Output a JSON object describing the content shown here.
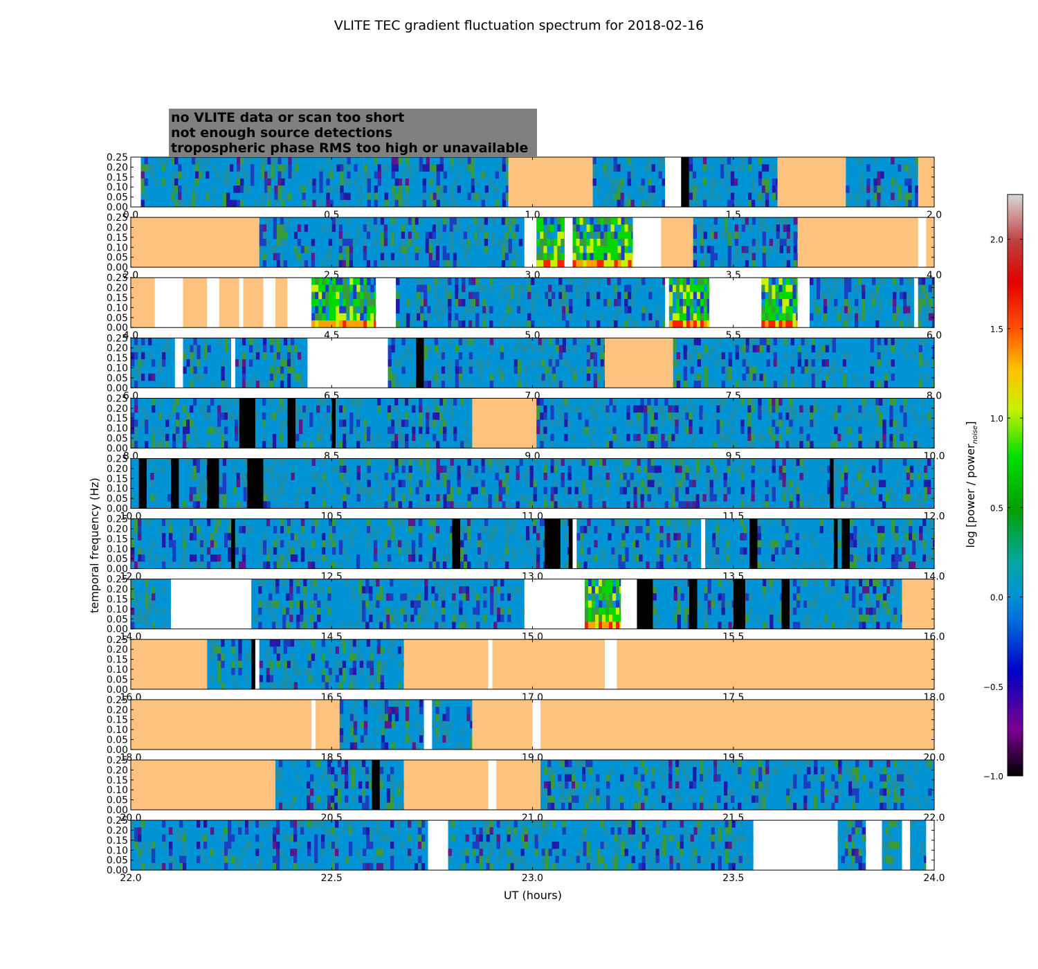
{
  "chart_data": {
    "type": "heatmap",
    "title": "VLITE TEC gradient fluctuation spectrum for 2018-02-16",
    "xlabel": "UT (hours)",
    "ylabel": "temporal frequency (Hz)",
    "colorbar_label": "log [power / power",
    "colorbar_label_sub": "noise",
    "colorbar_label_close": "]",
    "colorbar_range": [
      -1.0,
      2.25
    ],
    "colorbar_ticks": [
      "−1.0",
      "−0.5",
      "0.0",
      "0.5",
      "1.0",
      "1.5",
      "2.0"
    ],
    "colorbar_tick_values": [
      -1.0,
      -0.5,
      0.0,
      0.5,
      1.0,
      1.5,
      2.0
    ],
    "ylim": [
      0,
      0.25
    ],
    "ytick_labels": [
      "0.00",
      "0.05",
      "0.10",
      "0.15",
      "0.20",
      "0.25"
    ],
    "grid": false,
    "legend": {
      "placement": "top-left",
      "entries": [
        {
          "label": "no VLITE data or scan too short",
          "text_color": "#ffffff",
          "fill": "#ffffff"
        },
        {
          "label": "not enough source detections",
          "text_color": "#000000",
          "fill": "#000000"
        },
        {
          "label": "tropospheric phase RMS too high or unavailable",
          "text_color": "#fdc37e",
          "fill": "#fdc37e"
        }
      ]
    },
    "colors": {
      "nodata": "#ffffff",
      "nodetect": "#000000",
      "tropo": "#fdc37e",
      "legend_bg": "#808080",
      "baseline": "#0093d6"
    },
    "panels": [
      {
        "xlim": [
          0.0,
          2.0
        ],
        "xticks": [
          "0.0",
          "0.5",
          "1.0",
          "1.5",
          "2.0"
        ],
        "segments": [
          [
            0.0,
            0.025,
            "nodata"
          ],
          [
            0.025,
            0.1,
            "data"
          ],
          [
            0.1,
            0.34,
            "data"
          ],
          [
            0.34,
            0.58,
            "data"
          ],
          [
            0.58,
            0.94,
            "data"
          ],
          [
            0.94,
            1.15,
            "tropo"
          ],
          [
            1.15,
            1.33,
            "data"
          ],
          [
            1.33,
            1.37,
            "nodata"
          ],
          [
            1.37,
            1.39,
            "nodetect"
          ],
          [
            1.39,
            1.61,
            "data"
          ],
          [
            1.61,
            1.78,
            "tropo"
          ],
          [
            1.78,
            1.96,
            "data"
          ],
          [
            1.96,
            2.0,
            "tropo"
          ]
        ]
      },
      {
        "xlim": [
          2.0,
          4.0
        ],
        "xticks": [
          "2.0",
          "2.5",
          "3.0",
          "3.5",
          "4.0"
        ],
        "segments": [
          [
            2.0,
            2.32,
            "tropo"
          ],
          [
            2.32,
            2.98,
            "data"
          ],
          [
            2.98,
            3.01,
            "nodata"
          ],
          [
            3.01,
            3.08,
            "active"
          ],
          [
            3.08,
            3.1,
            "nodata"
          ],
          [
            3.1,
            3.25,
            "active"
          ],
          [
            3.25,
            3.32,
            "nodata"
          ],
          [
            3.32,
            3.4,
            "tropo"
          ],
          [
            3.4,
            3.66,
            "data"
          ],
          [
            3.66,
            3.96,
            "tropo"
          ],
          [
            3.96,
            3.98,
            "nodata"
          ],
          [
            3.98,
            4.0,
            "tropo"
          ]
        ]
      },
      {
        "xlim": [
          4.0,
          6.0
        ],
        "xticks": [
          "4.0",
          "4.5",
          "5.0",
          "5.5",
          "6.0"
        ],
        "segments": [
          [
            4.0,
            4.06,
            "tropo"
          ],
          [
            4.06,
            4.13,
            "nodata"
          ],
          [
            4.13,
            4.19,
            "tropo"
          ],
          [
            4.19,
            4.22,
            "nodata"
          ],
          [
            4.22,
            4.27,
            "tropo"
          ],
          [
            4.27,
            4.28,
            "nodata"
          ],
          [
            4.28,
            4.33,
            "tropo"
          ],
          [
            4.33,
            4.36,
            "nodata"
          ],
          [
            4.36,
            4.39,
            "tropo"
          ],
          [
            4.39,
            4.45,
            "nodata"
          ],
          [
            4.45,
            4.61,
            "active"
          ],
          [
            4.61,
            4.66,
            "nodata"
          ],
          [
            4.66,
            5.33,
            "data"
          ],
          [
            5.33,
            5.34,
            "nodata"
          ],
          [
            5.34,
            5.44,
            "active"
          ],
          [
            5.44,
            5.57,
            "nodata"
          ],
          [
            5.57,
            5.66,
            "active"
          ],
          [
            5.66,
            5.69,
            "nodata"
          ],
          [
            5.69,
            5.95,
            "data"
          ],
          [
            5.95,
            5.96,
            "nodata"
          ],
          [
            5.96,
            6.0,
            "data"
          ]
        ]
      },
      {
        "xlim": [
          6.0,
          8.0
        ],
        "xticks": [
          "6.0",
          "6.5",
          "7.0",
          "7.5",
          "8.0"
        ],
        "segments": [
          [
            6.0,
            6.11,
            "data"
          ],
          [
            6.11,
            6.13,
            "nodata"
          ],
          [
            6.13,
            6.25,
            "data"
          ],
          [
            6.25,
            6.26,
            "nodata"
          ],
          [
            6.26,
            6.44,
            "data"
          ],
          [
            6.44,
            6.64,
            "nodata"
          ],
          [
            6.64,
            6.71,
            "data"
          ],
          [
            6.71,
            6.73,
            "nodetect"
          ],
          [
            6.73,
            7.18,
            "data"
          ],
          [
            7.18,
            7.35,
            "tropo"
          ],
          [
            7.35,
            8.0,
            "data"
          ]
        ]
      },
      {
        "xlim": [
          8.0,
          10.0
        ],
        "xticks": [
          "8.0",
          "8.5",
          "9.0",
          "9.5",
          "10.0"
        ],
        "segments": [
          [
            8.0,
            8.27,
            "data"
          ],
          [
            8.27,
            8.31,
            "nodetect"
          ],
          [
            8.31,
            8.39,
            "data"
          ],
          [
            8.39,
            8.41,
            "nodetect"
          ],
          [
            8.41,
            8.5,
            "data"
          ],
          [
            8.5,
            8.51,
            "nodetect"
          ],
          [
            8.51,
            8.85,
            "data"
          ],
          [
            8.85,
            9.01,
            "tropo"
          ],
          [
            9.01,
            10.0,
            "data"
          ]
        ]
      },
      {
        "xlim": [
          10.0,
          12.0
        ],
        "xticks": [
          "10.0",
          "10.5",
          "11.0",
          "11.5",
          "12.0"
        ],
        "segments": [
          [
            10.0,
            10.02,
            "data"
          ],
          [
            10.02,
            10.04,
            "nodetect"
          ],
          [
            10.04,
            10.1,
            "data"
          ],
          [
            10.1,
            10.12,
            "nodetect"
          ],
          [
            10.12,
            10.19,
            "data"
          ],
          [
            10.19,
            10.22,
            "nodetect"
          ],
          [
            10.22,
            10.29,
            "data"
          ],
          [
            10.29,
            10.33,
            "nodetect"
          ],
          [
            10.33,
            11.74,
            "data"
          ],
          [
            11.74,
            11.75,
            "nodetect"
          ],
          [
            11.75,
            12.0,
            "data"
          ]
        ]
      },
      {
        "xlim": [
          12.0,
          14.0
        ],
        "xticks": [
          "12.0",
          "12.5",
          "13.0",
          "13.5",
          "14.0"
        ],
        "segments": [
          [
            12.0,
            12.25,
            "data"
          ],
          [
            12.25,
            12.26,
            "nodetect"
          ],
          [
            12.26,
            12.8,
            "data"
          ],
          [
            12.8,
            12.82,
            "nodetect"
          ],
          [
            12.82,
            13.03,
            "data"
          ],
          [
            13.03,
            13.07,
            "nodetect"
          ],
          [
            13.07,
            13.09,
            "data"
          ],
          [
            13.09,
            13.1,
            "nodetect"
          ],
          [
            13.1,
            13.11,
            "nodata"
          ],
          [
            13.11,
            13.42,
            "data"
          ],
          [
            13.42,
            13.43,
            "nodata"
          ],
          [
            13.43,
            13.54,
            "data"
          ],
          [
            13.54,
            13.56,
            "nodetect"
          ],
          [
            13.56,
            13.75,
            "data"
          ],
          [
            13.75,
            13.76,
            "nodetect"
          ],
          [
            13.76,
            13.77,
            "data"
          ],
          [
            13.77,
            13.79,
            "nodetect"
          ],
          [
            13.79,
            14.0,
            "data"
          ]
        ]
      },
      {
        "xlim": [
          14.0,
          16.0
        ],
        "xticks": [
          "14.0",
          "14.5",
          "15.0",
          "15.5",
          "16.0"
        ],
        "segments": [
          [
            14.0,
            14.1,
            "data"
          ],
          [
            14.1,
            14.3,
            "nodata"
          ],
          [
            14.3,
            14.98,
            "data"
          ],
          [
            14.98,
            15.13,
            "nodata"
          ],
          [
            15.13,
            15.22,
            "active"
          ],
          [
            15.22,
            15.26,
            "nodata"
          ],
          [
            15.26,
            15.3,
            "nodetect"
          ],
          [
            15.3,
            15.39,
            "data"
          ],
          [
            15.39,
            15.41,
            "nodetect"
          ],
          [
            15.41,
            15.5,
            "data"
          ],
          [
            15.5,
            15.53,
            "nodetect"
          ],
          [
            15.53,
            15.62,
            "data"
          ],
          [
            15.62,
            15.64,
            "nodetect"
          ],
          [
            15.64,
            15.92,
            "data"
          ],
          [
            15.92,
            16.0,
            "tropo"
          ]
        ]
      },
      {
        "xlim": [
          16.0,
          18.0
        ],
        "xticks": [
          "16.0",
          "16.5",
          "17.0",
          "17.5",
          "18.0"
        ],
        "segments": [
          [
            16.0,
            16.19,
            "tropo"
          ],
          [
            16.19,
            16.3,
            "data"
          ],
          [
            16.3,
            16.31,
            "nodetect"
          ],
          [
            16.31,
            16.32,
            "nodata"
          ],
          [
            16.32,
            16.68,
            "data"
          ],
          [
            16.68,
            16.89,
            "tropo"
          ],
          [
            16.89,
            16.9,
            "nodata"
          ],
          [
            16.9,
            17.18,
            "tropo"
          ],
          [
            17.18,
            17.21,
            "nodata"
          ],
          [
            17.21,
            18.0,
            "tropo"
          ]
        ]
      },
      {
        "xlim": [
          18.0,
          20.0
        ],
        "xticks": [
          "18.0",
          "18.5",
          "19.0",
          "19.5",
          "20.0"
        ],
        "segments": [
          [
            18.0,
            18.45,
            "tropo"
          ],
          [
            18.45,
            18.46,
            "nodata"
          ],
          [
            18.46,
            18.52,
            "tropo"
          ],
          [
            18.52,
            18.73,
            "data"
          ],
          [
            18.73,
            18.75,
            "nodata"
          ],
          [
            18.75,
            18.85,
            "data"
          ],
          [
            18.85,
            19.0,
            "tropo"
          ],
          [
            19.0,
            19.02,
            "nodata"
          ],
          [
            19.02,
            20.0,
            "tropo"
          ]
        ]
      },
      {
        "xlim": [
          20.0,
          22.0
        ],
        "xticks": [
          "20.0",
          "20.5",
          "21.0",
          "21.5",
          "22.0"
        ],
        "segments": [
          [
            20.0,
            20.36,
            "tropo"
          ],
          [
            20.36,
            20.6,
            "data"
          ],
          [
            20.6,
            20.62,
            "nodetect"
          ],
          [
            20.62,
            20.68,
            "data"
          ],
          [
            20.68,
            20.89,
            "tropo"
          ],
          [
            20.89,
            20.91,
            "nodata"
          ],
          [
            20.91,
            21.02,
            "tropo"
          ],
          [
            21.02,
            22.0,
            "data"
          ]
        ]
      },
      {
        "xlim": [
          22.0,
          24.0
        ],
        "xticks": [
          "22.0",
          "22.5",
          "23.0",
          "23.5",
          "24.0"
        ],
        "segments": [
          [
            22.0,
            22.74,
            "data"
          ],
          [
            22.74,
            22.79,
            "nodata"
          ],
          [
            22.79,
            23.55,
            "data"
          ],
          [
            23.55,
            23.76,
            "nodata"
          ],
          [
            23.76,
            23.83,
            "data"
          ],
          [
            23.83,
            23.87,
            "nodata"
          ],
          [
            23.87,
            23.92,
            "data"
          ],
          [
            23.92,
            23.94,
            "nodata"
          ],
          [
            23.94,
            23.98,
            "data"
          ],
          [
            23.98,
            24.0,
            "nodata"
          ]
        ]
      }
    ]
  }
}
